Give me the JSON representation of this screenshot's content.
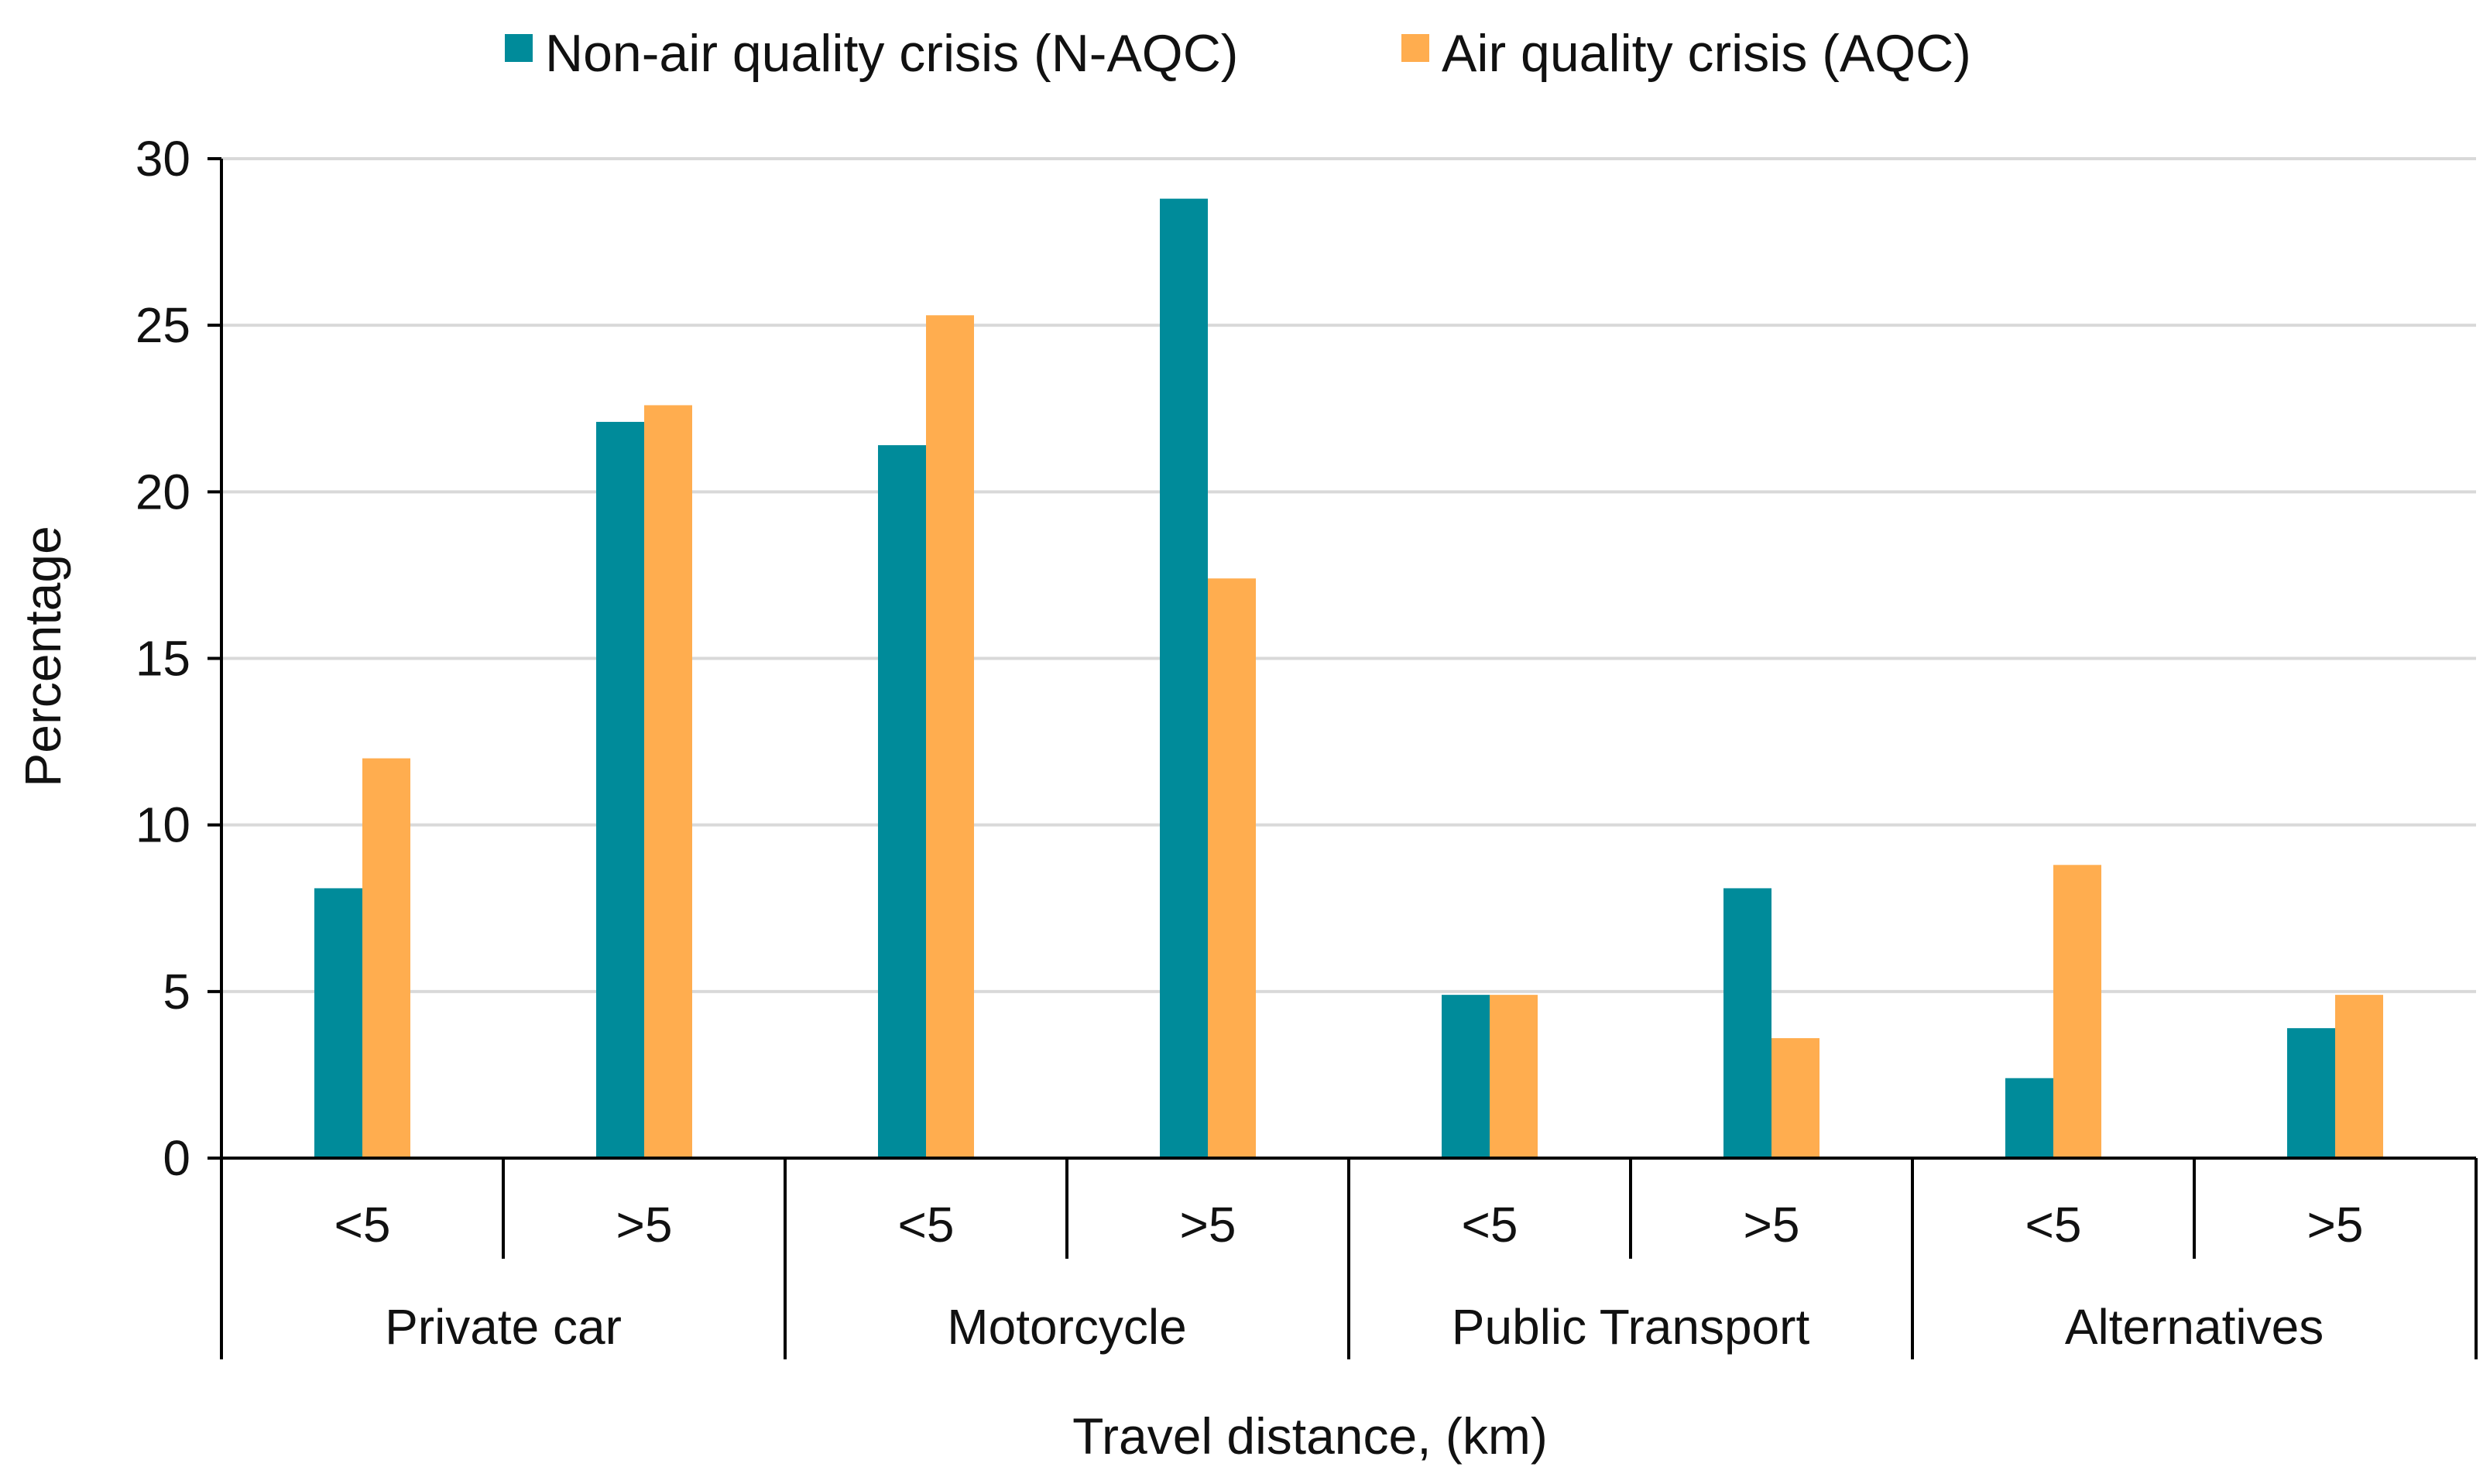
{
  "chart_data": {
    "type": "bar",
    "title": "",
    "xlabel": "Travel distance, (km)",
    "ylabel": "Percentage",
    "ylim": [
      0,
      30
    ],
    "yticks": [
      0,
      5,
      10,
      15,
      20,
      25,
      30
    ],
    "grid": true,
    "legend_position": "top-center",
    "groups": [
      {
        "label": "Private car",
        "subcategories": [
          "<5",
          ">5"
        ]
      },
      {
        "label": "Motorcycle",
        "subcategories": [
          "<5",
          ">5"
        ]
      },
      {
        "label": "Public Transport",
        "subcategories": [
          "<5",
          ">5"
        ]
      },
      {
        "label": "Alternatives",
        "subcategories": [
          "<5",
          ">5"
        ]
      }
    ],
    "categories": [
      "<5",
      ">5",
      "<5",
      ">5",
      "<5",
      ">5",
      "<5",
      ">5"
    ],
    "series": [
      {
        "name": "Non-air quality crisis (N-AQC)",
        "color": "#008B9A",
        "values": [
          8.1,
          22.1,
          21.4,
          28.8,
          4.9,
          8.1,
          2.4,
          3.9
        ]
      },
      {
        "name": "Air quality crisis (AQC)",
        "color": "#FFAD4F",
        "values": [
          12.0,
          22.6,
          25.3,
          17.4,
          4.9,
          3.6,
          8.8,
          4.9
        ]
      }
    ]
  },
  "colors": {
    "gridline": "#d9d9d9",
    "axis": "#000000",
    "text": "#111111"
  }
}
